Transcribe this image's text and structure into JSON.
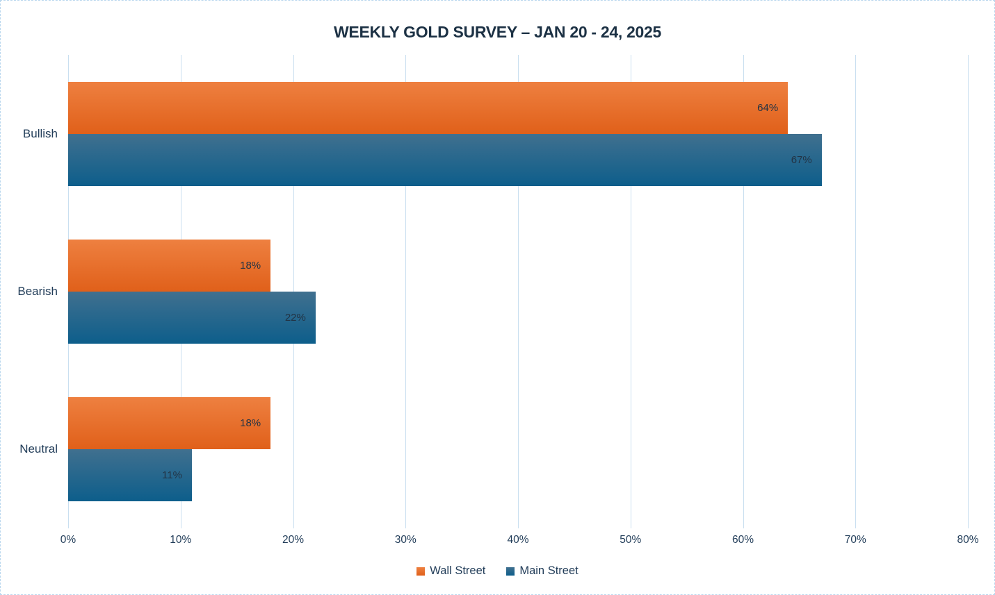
{
  "page": {
    "background": "#ffffff",
    "border_color": "#b9d7ee"
  },
  "chart": {
    "title_color": "#1c3144",
    "text_color": "#223d59",
    "value_label_color": "#223344",
    "gridline_color": "#c9dff0"
  },
  "chart_data": {
    "type": "bar",
    "orientation": "horizontal",
    "title": "WEEKLY GOLD SURVEY – JAN 20 - 24, 2025",
    "categories": [
      "Bullish",
      "Bearish",
      "Neutral"
    ],
    "series": [
      {
        "name": "Wall Street",
        "values": [
          64,
          18,
          18
        ],
        "color_top": "#ee8040",
        "color_bottom": "#e0601a"
      },
      {
        "name": "Main Street",
        "values": [
          67,
          22,
          11
        ],
        "color_top": "#40708f",
        "color_bottom": "#0d5e8b"
      }
    ],
    "value_suffix": "%",
    "x_ticks": [
      "0%",
      "10%",
      "20%",
      "30%",
      "40%",
      "50%",
      "60%",
      "70%",
      "80%"
    ],
    "xlim": [
      0,
      80
    ],
    "grid": true,
    "legend_position": "bottom"
  }
}
